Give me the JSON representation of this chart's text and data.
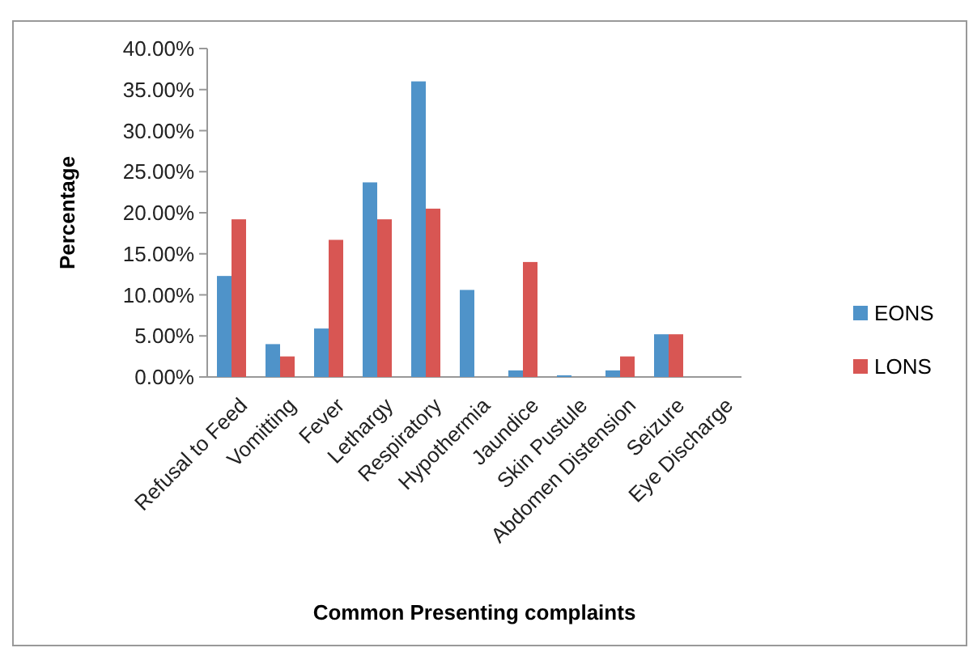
{
  "chart_data": {
    "type": "bar",
    "xlabel": "Common Presenting complaints",
    "ylabel": "Percentage",
    "categories": [
      "Refusal to Feed",
      "Vomitting",
      "Fever",
      "Lethargy",
      "Respiratory",
      "Hypothermia",
      "Jaundice",
      "Skin Pustule",
      "Abdomen Distension",
      "Seizure",
      "Eye Discharge"
    ],
    "series": [
      {
        "name": "EONS",
        "color": "#4f93c9",
        "values": [
          12.3,
          4.0,
          5.9,
          23.7,
          36.0,
          10.6,
          0.8,
          0.2,
          0.8,
          5.2,
          0
        ]
      },
      {
        "name": "LONS",
        "color": "#d85653",
        "values": [
          19.2,
          2.5,
          16.7,
          19.2,
          20.5,
          0,
          14.0,
          0,
          2.5,
          5.2,
          0
        ]
      }
    ],
    "ylim": [
      0,
      40
    ],
    "yticks": [
      {
        "value": 0,
        "label": "0.00%"
      },
      {
        "value": 5,
        "label": "5.00%"
      },
      {
        "value": 10,
        "label": "10.00%"
      },
      {
        "value": 15,
        "label": "15.00%"
      },
      {
        "value": 20,
        "label": "20.00%"
      },
      {
        "value": 25,
        "label": "25.00%"
      },
      {
        "value": 30,
        "label": "30.00%"
      },
      {
        "value": 35,
        "label": "35.00%"
      },
      {
        "value": 40,
        "label": "40.00%"
      }
    ],
    "grid": false,
    "legend": "right"
  }
}
